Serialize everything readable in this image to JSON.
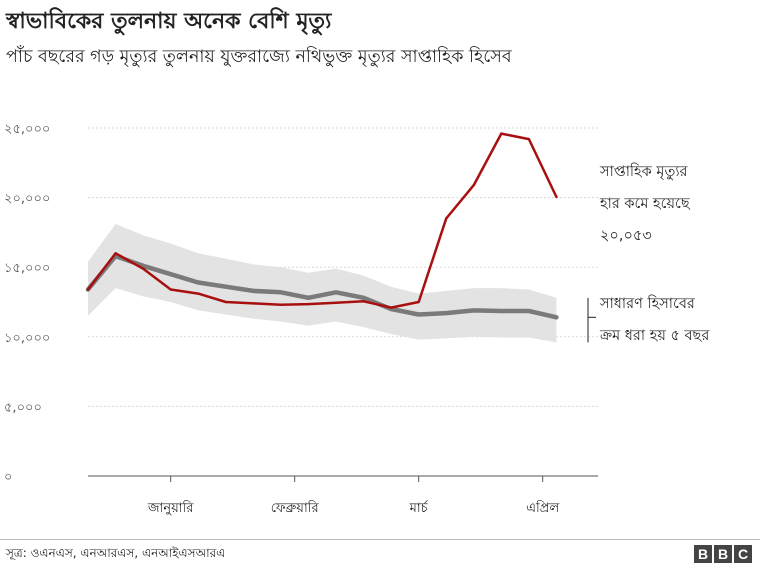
{
  "title": "স্বাভাবিকের তুলনায় অনেক বেশি মৃত্যু",
  "subtitle": "পাঁচ বছরের গড় মৃত্যুর তুলনায় যুক্তরাজ্যে নথিভুক্ত মৃত্যুর সাপ্তাহিক হিসেব",
  "annotations": {
    "weekly_line1": "সাপ্তাহিক মৃত্যুর",
    "weekly_line2": "হার কমে হয়েছে",
    "weekly_line3": "২০,০৫৩",
    "normal_line1": "সাধারণ হিসাবের",
    "normal_line2": "ক্রম ধরা হয় ৫ বছর"
  },
  "source": "সূত্র: ওএনএস, এনআরএস, এনআইএসআরএ",
  "logo": [
    "B",
    "B",
    "C"
  ],
  "colors": {
    "weekly": "#a81010",
    "average": "#7a7a7a",
    "range": "#e3e3e3",
    "grid": "#d8d8d8"
  },
  "chart_data": {
    "type": "line",
    "title": "স্বাভাবিকের তুলনায় অনেক বেশি মৃত্যু",
    "subtitle": "পাঁচ বছরের গড় মৃত্যুর তুলনায় যুক্তরাজ্যে নথিভুক্ত মৃত্যুর সাপ্তাহিক হিসেব",
    "x_ticks": [
      "জানুয়ারি",
      "ফেব্রুয়ারি",
      "মার্চ",
      "এপ্রিল"
    ],
    "x_tick_positions": [
      3,
      7.5,
      12,
      16.5
    ],
    "x_range": [
      0,
      18
    ],
    "ylim": [
      0,
      25000
    ],
    "y_ticks": [
      0,
      5000,
      10000,
      15000,
      20000,
      25000
    ],
    "y_tick_labels": [
      "০",
      "৫,০০০",
      "১০,০০০",
      "১৫,০০০",
      "২০,০০০",
      "২৫,০০০"
    ],
    "grid": true,
    "x": [
      0,
      1,
      2,
      3,
      4,
      5,
      6,
      7,
      8,
      9,
      10,
      11,
      12,
      13,
      14,
      15,
      16,
      17
    ],
    "series": [
      {
        "name": "সাপ্তাহিক মৃত্যুর",
        "role": "weekly",
        "values": [
          13400,
          16000,
          14900,
          13400,
          13100,
          12500,
          12400,
          12300,
          12350,
          12450,
          12550,
          12100,
          12500,
          18500,
          20900,
          24600,
          24200,
          20053
        ]
      },
      {
        "name": "",
        "role": "average",
        "values": [
          13400,
          15800,
          15100,
          14500,
          13900,
          13600,
          13300,
          13200,
          12800,
          13200,
          12800,
          12000,
          11600,
          11700,
          11900,
          11850,
          11850,
          11400
        ]
      }
    ],
    "range_band": {
      "upper": [
        15400,
        18100,
        17300,
        16700,
        16000,
        15600,
        15200,
        15000,
        14600,
        14900,
        14400,
        13600,
        13100,
        13300,
        13500,
        13500,
        13400,
        12800
      ],
      "lower": [
        11500,
        13500,
        12900,
        12500,
        11900,
        11600,
        11300,
        11100,
        10800,
        11100,
        10700,
        10200,
        9800,
        9900,
        10000,
        9950,
        9950,
        9600
      ]
    }
  }
}
